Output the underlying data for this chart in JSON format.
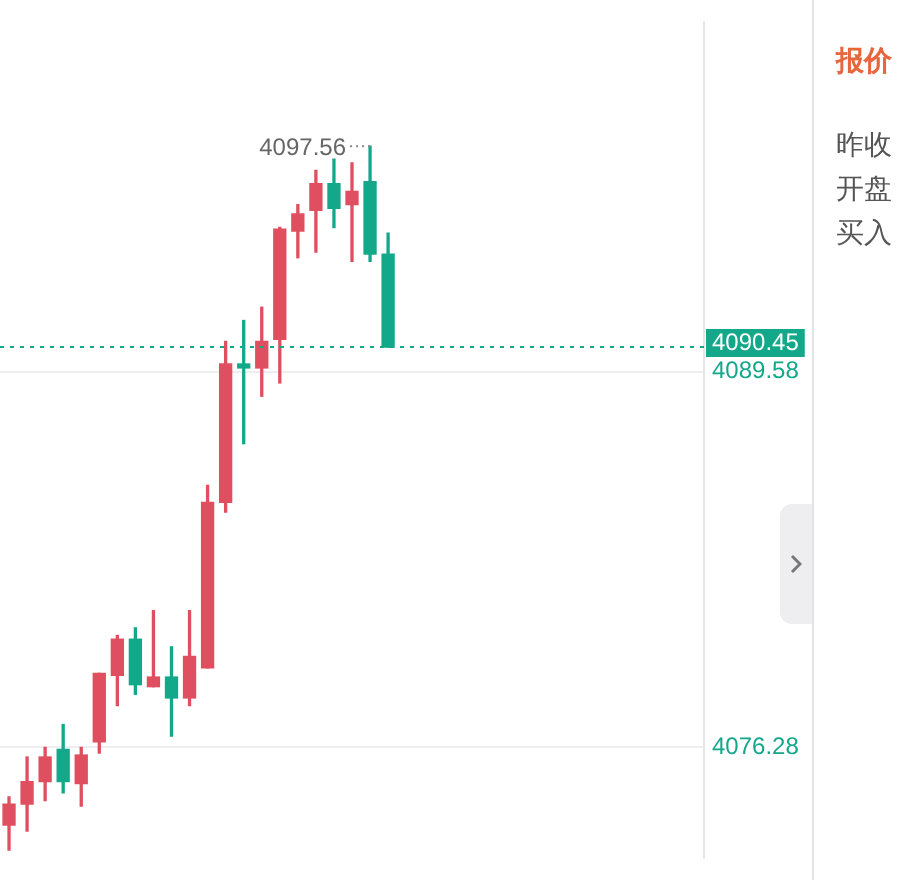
{
  "chart_data": {
    "type": "candlestick",
    "categories": [
      null,
      null,
      null,
      null,
      null,
      null,
      null,
      null,
      null,
      null,
      null,
      null,
      null,
      null,
      null,
      null,
      null,
      null,
      null,
      null,
      null,
      null,
      null,
      null,
      null,
      null,
      null,
      null,
      null,
      null,
      null,
      null,
      null,
      null,
      null,
      null,
      null,
      null,
      null
    ],
    "ohlc": [
      [
        4073.53,
        4074.53,
        4072.65,
        4074.27
      ],
      [
        4074.27,
        4075.94,
        4073.32,
        4075.07
      ],
      [
        4075.07,
        4076.28,
        4074.4,
        4075.94
      ],
      [
        4076.21,
        4077.09,
        4074.67,
        4075.07
      ],
      [
        4075.0,
        4076.28,
        4074.2,
        4076.01
      ],
      [
        4076.48,
        4078.9,
        4076.08,
        4078.9
      ],
      [
        4078.83,
        4080.24,
        4077.76,
        4080.11
      ],
      [
        4080.11,
        4080.51,
        4078.16,
        4078.5
      ],
      [
        4078.43,
        4081.12,
        4078.43,
        4078.77
      ],
      [
        4078.77,
        4079.84,
        4076.68,
        4078.03
      ],
      [
        4078.03,
        4081.12,
        4077.76,
        4079.5
      ],
      [
        4079.1,
        4085.55,
        4079.1,
        4084.95
      ],
      [
        4084.95,
        4090.65,
        4084.61,
        4089.85
      ],
      [
        4089.85,
        4091.39,
        4087.03,
        4089.71
      ],
      [
        4089.71,
        4091.86,
        4088.71,
        4090.65
      ],
      [
        4090.72,
        4094.68,
        4089.18,
        4094.62
      ],
      [
        4094.55,
        4095.49,
        4093.61,
        4095.16
      ],
      [
        4095.29,
        4096.7,
        4093.81,
        4096.23
      ],
      [
        4096.23,
        4097.1,
        4094.68,
        4095.36
      ],
      [
        4095.49,
        4096.97,
        4093.48,
        4095.96
      ],
      [
        4096.3,
        4097.56,
        4093.48,
        4093.74
      ],
      [
        4093.74,
        4094.48,
        4090.45,
        4090.45
      ],
      null,
      null,
      null,
      null,
      null,
      null,
      null,
      null,
      null,
      null,
      null,
      null,
      null,
      null,
      null,
      null,
      null
    ],
    "colors": [
      "#e04f5f",
      "#e04f5f",
      "#e04f5f",
      "#14a88a",
      "#e04f5f",
      "#e04f5f",
      "#e04f5f",
      "#14a88a",
      "#e04f5f",
      "#14a88a",
      "#e04f5f",
      "#e04f5f",
      "#e04f5f",
      "#14a88a",
      "#e04f5f",
      "#e04f5f",
      "#e04f5f",
      "#e04f5f",
      "#14a88a",
      "#e04f5f",
      "#14a88a",
      "#14a88a",
      null,
      null,
      null,
      null,
      null,
      null,
      null,
      null,
      null,
      null,
      null,
      null,
      null,
      null,
      null,
      null,
      null
    ],
    "ylim": [
      4072.38,
      4101.94
    ],
    "yticks": [
      4076.28,
      4089.58
    ],
    "grid": "y",
    "tick_labels": "y",
    "ref_lines": [
      {
        "axis": "y",
        "value": 4090.45,
        "label": "4090.45",
        "color": "#14a88a",
        "line_style": "dotted"
      }
    ],
    "annotations": [
      "4097.56",
      "报价",
      "昨收",
      "开盘",
      "买入"
    ]
  }
}
